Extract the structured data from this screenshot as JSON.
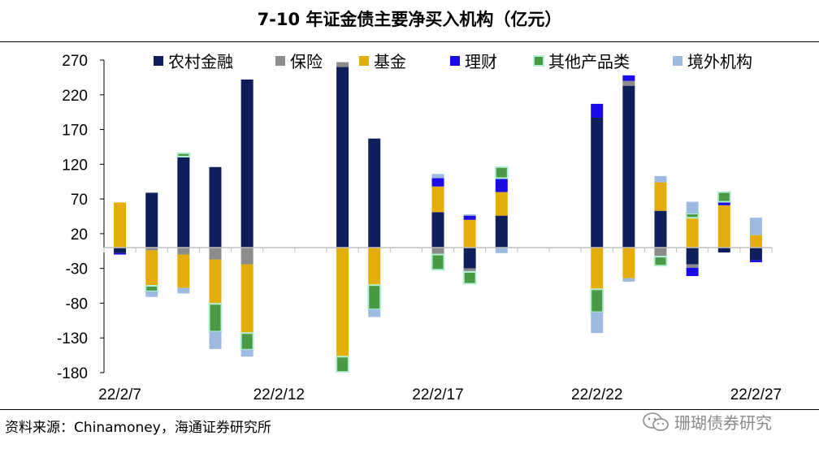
{
  "title": "7-10 年证金债主要净买入机构（亿元）",
  "source": "资料来源：Chinamoney，海通证券研究所",
  "watermark": "珊瑚债券研究",
  "chart_data": {
    "type": "bar",
    "stacked": true,
    "ylim": [
      -180,
      270
    ],
    "yticks": [
      270,
      220,
      170,
      120,
      70,
      20,
      -30,
      -80,
      -130,
      -180
    ],
    "xtick_labels": [
      {
        "label": "22/2/7",
        "index": 0
      },
      {
        "label": "22/2/12",
        "index": 5
      },
      {
        "label": "22/2/17",
        "index": 10
      },
      {
        "label": "22/2/22",
        "index": 15
      },
      {
        "label": "22/2/27",
        "index": 20
      }
    ],
    "categories": [
      "22/2/7",
      "22/2/8",
      "22/2/9",
      "22/2/10",
      "22/2/11",
      "22/2/12",
      "22/2/13",
      "22/2/14",
      "22/2/15",
      "22/2/16",
      "22/2/17",
      "22/2/18",
      "22/2/19",
      "22/2/20",
      "22/2/21",
      "22/2/22",
      "22/2/23",
      "22/2/24",
      "22/2/25",
      "22/2/26",
      "22/2/27"
    ],
    "series": [
      {
        "name": "农村金融",
        "color": "#0f1f5c",
        "values": [
          -8,
          79,
          131,
          116,
          242,
          0,
          0,
          260,
          157,
          0,
          51,
          -30,
          46,
          0,
          0,
          187,
          233,
          53,
          -24,
          -7,
          -18
        ]
      },
      {
        "name": "保险",
        "color": "#8c8c8c",
        "values": [
          0,
          -4,
          -10,
          -17,
          -24,
          0,
          0,
          7,
          0,
          0,
          -10,
          -5,
          0,
          0,
          0,
          0,
          7,
          -13,
          -5,
          0,
          0
        ]
      },
      {
        "name": "基金",
        "color": "#e5ad0a",
        "values": [
          65,
          -51,
          -48,
          -64,
          -99,
          0,
          0,
          -157,
          -54,
          0,
          37,
          40,
          34,
          0,
          0,
          -60,
          -44,
          41,
          43,
          61,
          18
        ]
      },
      {
        "name": "理财",
        "color": "#1a0be8",
        "values": [
          -2,
          0,
          0,
          0,
          0,
          0,
          0,
          0,
          0,
          0,
          12,
          6,
          20,
          0,
          0,
          20,
          8,
          0,
          -12,
          5,
          -3
        ]
      },
      {
        "name": "其他产品类",
        "color": "#4a9a45",
        "values": [
          0,
          -8,
          5,
          -40,
          -24,
          0,
          0,
          -22,
          -35,
          0,
          -22,
          -17,
          16,
          0,
          0,
          -33,
          0,
          -13,
          6,
          14,
          0
        ]
      },
      {
        "name": "境外机构",
        "color": "#9dbbe0",
        "values": [
          0,
          -8,
          -8,
          -25,
          -10,
          0,
          0,
          0,
          -11,
          0,
          6,
          2,
          -8,
          0,
          0,
          -30,
          -5,
          9,
          17,
          0,
          25
        ]
      }
    ]
  }
}
